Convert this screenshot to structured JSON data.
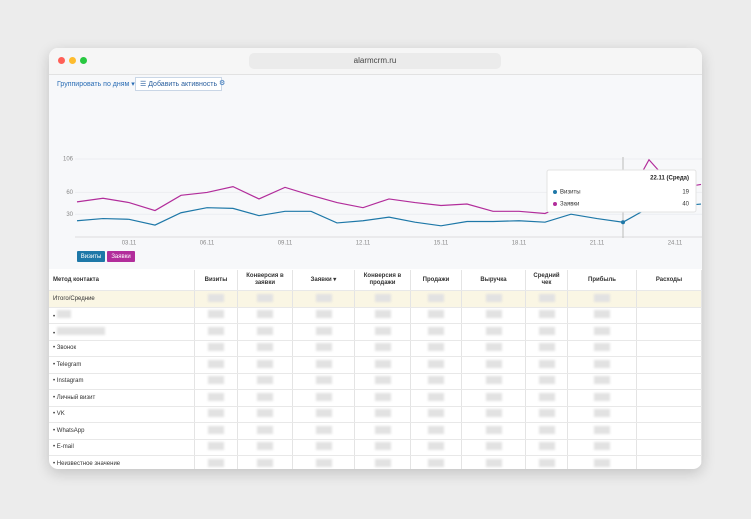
{
  "browser": {
    "url": "alarmcrm.ru"
  },
  "toolbar": {
    "group_by": "Группировать по дням",
    "add_activity": "Добавить активность"
  },
  "chart_data": {
    "type": "line",
    "categories": [
      null,
      null,
      "03.11",
      null,
      null,
      "06.11",
      null,
      null,
      "09.11",
      null,
      null,
      "12.11",
      null,
      null,
      "15.11",
      null,
      null,
      "18.11",
      null,
      null,
      "21.11",
      null,
      null,
      "24.11",
      null
    ],
    "series": [
      {
        "name": "Визиты",
        "color": "#1e78a8",
        "values": [
          21,
          24,
          23,
          15,
          32,
          39,
          38,
          28,
          34,
          34,
          18,
          21,
          26,
          19,
          14,
          20,
          20,
          21,
          19,
          30,
          24,
          19,
          39,
          41,
          44
        ]
      },
      {
        "name": "Заявки",
        "color": "#b22d9b",
        "values": [
          47,
          52,
          46,
          35,
          56,
          60,
          68,
          51,
          67,
          56,
          46,
          39,
          51,
          46,
          42,
          44,
          34,
          34,
          31,
          46,
          51,
          40,
          105,
          65,
          71
        ]
      }
    ],
    "ylim": [
      0,
      106
    ],
    "yticks": [
      30,
      60,
      106
    ],
    "grid": true,
    "tooltip": {
      "title": "22.11 (Среда)",
      "index": 21
    }
  },
  "table": {
    "columns": [
      "Метод контакта",
      "Визиты",
      "Конверсия в заявки",
      "Заявки",
      "Конверсия в продажи",
      "Продажи",
      "Выручка",
      "Средний чек",
      "Прибыль",
      "Расходы"
    ],
    "total_label": "Итого/Средние",
    "rows": [
      "Звонок",
      "Telegram",
      "Instagram",
      "Личный визит",
      "VK",
      "WhatsApp",
      "E-mail",
      "Неизвестное значение"
    ]
  }
}
